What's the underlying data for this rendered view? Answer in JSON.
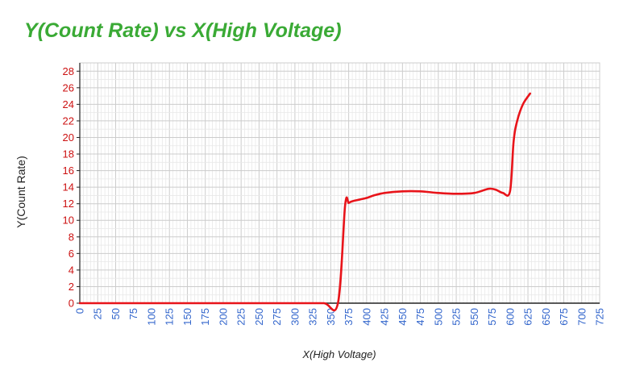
{
  "chart_data": {
    "type": "line",
    "title": "Y(Count Rate) vs X(High Voltage)",
    "xlabel": "X(High Voltage)",
    "ylabel": "Y(Count Rate)",
    "xlim": [
      0,
      725
    ],
    "ylim": [
      0,
      29
    ],
    "x_major_step": 25,
    "y_major_step": 2,
    "grid": true,
    "legend": "none",
    "x_ticks": [
      "0",
      "25",
      "50",
      "75",
      "100",
      "125",
      "150",
      "175",
      "200",
      "225",
      "250",
      "275",
      "300",
      "325",
      "350",
      "375",
      "400",
      "425",
      "450",
      "475",
      "500",
      "525",
      "550",
      "575",
      "600",
      "625",
      "650",
      "675",
      "700",
      "725"
    ],
    "y_ticks": [
      "0",
      "2",
      "4",
      "6",
      "8",
      "10",
      "12",
      "14",
      "16",
      "18",
      "20",
      "22",
      "24",
      "26",
      "28"
    ],
    "series": [
      {
        "color": "#e8141a",
        "points": [
          [
            0,
            0
          ],
          [
            50,
            0
          ],
          [
            100,
            0
          ],
          [
            150,
            0
          ],
          [
            200,
            0
          ],
          [
            250,
            0
          ],
          [
            300,
            0
          ],
          [
            340,
            0
          ],
          [
            360,
            0
          ],
          [
            370,
            11.8
          ],
          [
            375,
            12.1
          ],
          [
            380,
            12.3
          ],
          [
            390,
            12.5
          ],
          [
            400,
            12.7
          ],
          [
            410,
            13.0
          ],
          [
            425,
            13.3
          ],
          [
            450,
            13.5
          ],
          [
            475,
            13.5
          ],
          [
            500,
            13.3
          ],
          [
            525,
            13.2
          ],
          [
            550,
            13.3
          ],
          [
            570,
            13.8
          ],
          [
            580,
            13.7
          ],
          [
            590,
            13.3
          ],
          [
            600,
            13.5
          ],
          [
            605,
            19.5
          ],
          [
            610,
            22.0
          ],
          [
            618,
            24.0
          ],
          [
            628,
            25.3
          ]
        ]
      }
    ],
    "colors": {
      "title": "#3aaa35",
      "y_tick_labels": "#cc1111",
      "x_tick_labels": "#3366cc",
      "grid_major": "#cccccc",
      "grid_minor": "#e8e8e8",
      "axis": "#222222"
    }
  }
}
